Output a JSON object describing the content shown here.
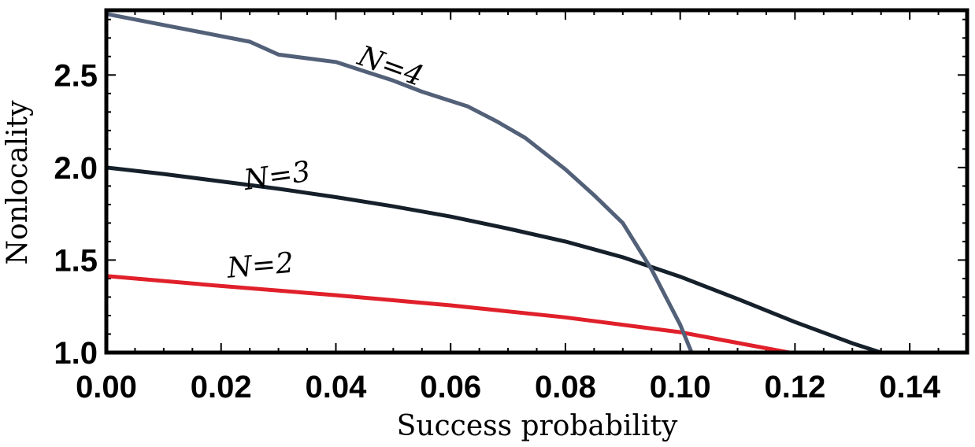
{
  "chart_data": {
    "type": "line",
    "title": "",
    "xlabel": "Success probability",
    "ylabel": "Nonlocality",
    "xlim": [
      0,
      0.15
    ],
    "ylim": [
      1.0,
      2.85
    ],
    "xticks": [
      0.0,
      0.02,
      0.04,
      0.06,
      0.08,
      0.1,
      0.12,
      0.14
    ],
    "xtick_labels": [
      "0.00",
      "0.02",
      "0.04",
      "0.06",
      "0.08",
      "0.10",
      "0.12",
      "0.14"
    ],
    "yticks": [
      1.0,
      1.5,
      2.0,
      2.5
    ],
    "ytick_labels": [
      "1.0",
      "1.5",
      "2.0",
      "2.5"
    ],
    "grid": false,
    "series": [
      {
        "name": "N=2",
        "color": "#e0202a",
        "x": [
          0.0,
          0.02,
          0.04,
          0.06,
          0.08,
          0.1,
          0.119
        ],
        "y": [
          1.414,
          1.36,
          1.31,
          1.255,
          1.19,
          1.11,
          1.0
        ]
      },
      {
        "name": "N=3",
        "color": "#15202b",
        "x": [
          0.0,
          0.01,
          0.02,
          0.03,
          0.04,
          0.05,
          0.06,
          0.07,
          0.08,
          0.09,
          0.1,
          0.11,
          0.12,
          0.13,
          0.135
        ],
        "y": [
          2.0,
          1.965,
          1.925,
          1.885,
          1.84,
          1.79,
          1.735,
          1.67,
          1.6,
          1.515,
          1.41,
          1.29,
          1.165,
          1.05,
          1.0
        ]
      },
      {
        "name": "N=4",
        "color": "#526078",
        "x": [
          0.0,
          0.01,
          0.02,
          0.025,
          0.03,
          0.04,
          0.045,
          0.05,
          0.055,
          0.063,
          0.068,
          0.073,
          0.08,
          0.085,
          0.09,
          0.095,
          0.1,
          0.102
        ],
        "y": [
          2.83,
          2.77,
          2.71,
          2.68,
          2.61,
          2.57,
          2.52,
          2.47,
          2.41,
          2.33,
          2.25,
          2.16,
          1.99,
          1.85,
          1.7,
          1.45,
          1.15,
          1.0
        ]
      }
    ],
    "annotations": [
      {
        "text": "N=2",
        "x": 0.027,
        "y": 1.42,
        "rotate": -5
      },
      {
        "text": "N=3",
        "x": 0.03,
        "y": 1.905,
        "rotate": -8
      },
      {
        "text": "N=4",
        "x": 0.049,
        "y": 2.5,
        "rotate": 20
      }
    ]
  }
}
